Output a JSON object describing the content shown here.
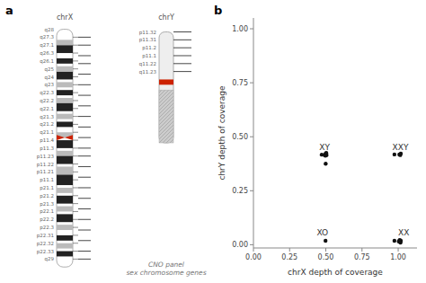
{
  "chart_data": [
    {
      "type": "ideogram",
      "panel_label": "a",
      "ylim": [
        0,
        100
      ],
      "annotation": "CNO panel\nsex chromosome genes",
      "chromosomes": [
        {
          "name": "chrX",
          "body": [
            3,
            90
          ],
          "dark_bands": [
            [
              84,
              3
            ],
            [
              80,
              2
            ],
            [
              74,
              3
            ],
            [
              68,
              2
            ],
            [
              62,
              4
            ],
            [
              56,
              2
            ],
            [
              48,
              3
            ],
            [
              42,
              4
            ],
            [
              34,
              4
            ],
            [
              27,
              3
            ],
            [
              20,
              3
            ],
            [
              13,
              2
            ],
            [
              7,
              2
            ]
          ],
          "light_bands": [
            [
              87,
              2
            ],
            [
              77,
              2
            ],
            [
              71,
              2
            ],
            [
              65,
              2
            ],
            [
              59,
              2
            ],
            [
              52,
              2
            ],
            [
              45,
              2
            ],
            [
              38,
              3
            ],
            [
              31,
              2
            ],
            [
              24,
              2
            ],
            [
              17,
              2
            ],
            [
              10,
              2
            ]
          ],
          "centromere": [
            51,
            2
          ],
          "ticks": [
            90,
            87,
            84,
            81,
            78,
            75,
            72,
            69,
            66,
            63,
            60,
            57,
            54,
            51,
            48,
            45,
            42,
            39,
            36,
            33,
            30,
            27,
            24,
            21,
            18,
            15,
            12,
            9,
            6
          ],
          "panel_ticks": [
            90,
            87,
            83,
            80,
            76,
            72,
            68,
            64,
            60,
            56,
            52,
            48,
            45,
            41,
            37,
            33,
            29,
            25,
            21,
            17,
            13,
            9,
            6
          ],
          "label_positions": [
            93,
            90,
            87,
            84,
            81,
            78,
            75,
            72,
            69,
            66,
            63,
            60,
            57,
            54,
            51,
            48,
            45,
            42,
            39,
            36,
            33,
            30,
            27,
            24,
            21,
            18,
            15,
            12,
            9,
            6
          ],
          "labels": [
            "q28",
            "q27.3",
            "q27.1",
            "q26.3",
            "q26.1",
            "q25",
            "q24",
            "q23",
            "q22.3",
            "q22.2",
            "q22.1",
            "q21.3",
            "q21.2",
            "q21.1",
            "p11.4",
            "p11.3",
            "p11.23",
            "p11.22",
            "p11.21",
            "p11.1",
            "p21.1",
            "p21.2",
            "p21.3",
            "p22.1",
            "p22.2",
            "p22.3",
            "p22.31",
            "p22.32",
            "p22.33",
            "q29"
          ]
        },
        {
          "name": "chrY",
          "body": [
            50,
            42
          ],
          "heterochromatin": [
            50,
            20
          ],
          "centromere": [
            72,
            2
          ],
          "ticks": [
            92,
            89,
            86,
            83,
            80,
            77
          ],
          "labels": [
            "p11.32",
            "p11.31",
            "p11.2",
            "p11.1",
            "q11.22",
            "q11.23"
          ]
        }
      ]
    },
    {
      "type": "scatter",
      "panel_label": "b",
      "x": [
        0.498,
        0.493,
        0.498,
        0.502,
        0.505,
        0.5,
        0.497,
        0.503,
        0.499,
        0.472,
        0.974,
        1.008,
        1.014,
        1.018,
        0.974,
        1.004,
        1.009,
        1.014,
        1.018,
        1.011,
        1.016
      ],
      "y": [
        0.018,
        0.415,
        0.42,
        0.418,
        0.415,
        0.422,
        0.412,
        0.425,
        0.375,
        0.417,
        0.418,
        0.418,
        0.415,
        0.422,
        0.018,
        0.015,
        0.02,
        0.012,
        0.018,
        0.022,
        0.01
      ],
      "color": "#111111",
      "annotations": [
        {
          "text": "XO",
          "x": 0.438,
          "y": 0.045
        },
        {
          "text": "XY",
          "x": 0.455,
          "y": 0.44
        },
        {
          "text": "XXY",
          "x": 0.96,
          "y": 0.44
        },
        {
          "text": "XX",
          "x": 1.0,
          "y": 0.045
        }
      ],
      "xlabel": "chrX depth of coverage",
      "ylabel": "chrY depth of coverage",
      "xlim": [
        0,
        1.13
      ],
      "ylim": [
        -0.015,
        1.05
      ],
      "xticks": [
        {
          "value": 0,
          "label": "0.00"
        },
        0.25,
        {
          "value": 0.5,
          "label": "0.50"
        },
        0.75,
        {
          "value": 1.0,
          "label": "1.00"
        }
      ],
      "yticks": [
        {
          "value": 0,
          "label": "0.00"
        },
        0.25,
        {
          "value": 0.5,
          "label": "0.50"
        },
        0.75,
        {
          "value": 1.0,
          "label": "1.00"
        }
      ]
    }
  ]
}
